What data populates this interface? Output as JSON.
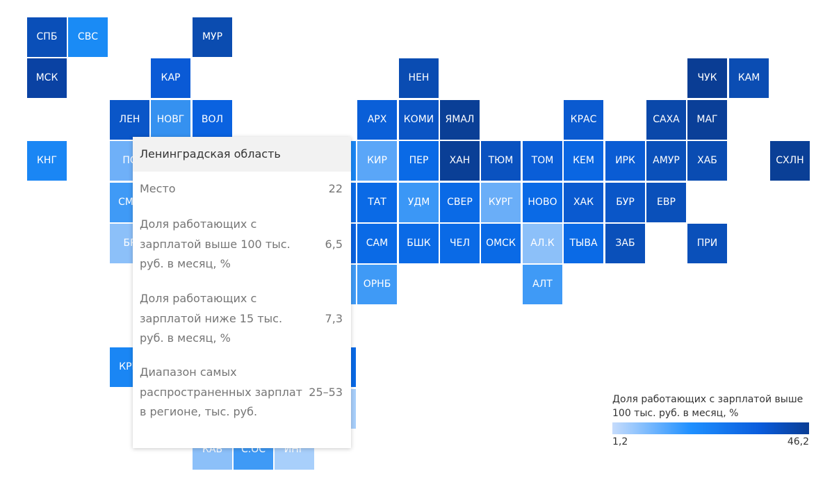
{
  "tiles": [
    {
      "code": "СПБ",
      "col": 0,
      "row": 0,
      "color": "#0a4fb8"
    },
    {
      "code": "СВС",
      "col": 1,
      "row": 0,
      "color": "#1a8bf5"
    },
    {
      "code": "МУР",
      "col": 4,
      "row": 0,
      "color": "#0b4cb0"
    },
    {
      "code": "МСК",
      "col": 0,
      "row": 1,
      "color": "#0a42a3"
    },
    {
      "code": "КАР",
      "col": 3,
      "row": 1,
      "color": "#0a5ad6"
    },
    {
      "code": "НЕН",
      "col": 9,
      "row": 1,
      "color": "#0a4cb2"
    },
    {
      "code": "ЧУК",
      "col": 16,
      "row": 1,
      "color": "#0a3d94"
    },
    {
      "code": "КАМ",
      "col": 17,
      "row": 1,
      "color": "#0b4db3"
    },
    {
      "code": "ЛЕН",
      "col": 2,
      "row": 2,
      "color": "#0a56c8"
    },
    {
      "code": "НОВГ",
      "col": 3,
      "row": 2,
      "color": "#3591f0"
    },
    {
      "code": "ВОЛ",
      "col": 4,
      "row": 2,
      "color": "#0a62e0"
    },
    {
      "code": "АРХ",
      "col": 8,
      "row": 2,
      "color": "#0a5fd8"
    },
    {
      "code": "КОМИ",
      "col": 9,
      "row": 2,
      "color": "#0a54c4"
    },
    {
      "code": "ЯМАЛ",
      "col": 10,
      "row": 2,
      "color": "#0a3f96"
    },
    {
      "code": "КРАС",
      "col": 13,
      "row": 2,
      "color": "#0a5ad0"
    },
    {
      "code": "САХА",
      "col": 15,
      "row": 2,
      "color": "#0a48aa"
    },
    {
      "code": "МАГ",
      "col": 16,
      "row": 2,
      "color": "#0a3f98"
    },
    {
      "code": "КНГ",
      "col": 0,
      "row": 3,
      "color": "#1a86f4"
    },
    {
      "code": "ПС",
      "col": 2,
      "row": 3,
      "color": "#6fb0f8"
    },
    {
      "code": "КИР",
      "col": 8,
      "row": 3,
      "color": "#5aa6f8"
    },
    {
      "code": "ПЕР",
      "col": 9,
      "row": 3,
      "color": "#0a6ae6"
    },
    {
      "code": "ХАН",
      "col": 10,
      "row": 3,
      "color": "#0a3f96"
    },
    {
      "code": "ТЮМ",
      "col": 11,
      "row": 3,
      "color": "#0a52c0"
    },
    {
      "code": "ТОМ",
      "col": 12,
      "row": 3,
      "color": "#0a5ed8"
    },
    {
      "code": "КЕМ",
      "col": 13,
      "row": 3,
      "color": "#0a66e2"
    },
    {
      "code": "ИРК",
      "col": 14,
      "row": 3,
      "color": "#0a5cd4"
    },
    {
      "code": "АМУР",
      "col": 15,
      "row": 3,
      "color": "#0a50ba"
    },
    {
      "code": "ХАБ",
      "col": 16,
      "row": 3,
      "color": "#0a4cb2"
    },
    {
      "code": "СХЛН",
      "col": 18,
      "row": 3,
      "color": "#0a3f96"
    },
    {
      "code": "СМО",
      "col": 2,
      "row": 4,
      "color": "#3f9af6"
    },
    {
      "code": "ТАТ",
      "col": 8,
      "row": 4,
      "color": "#0a6ae6"
    },
    {
      "code": "УДМ",
      "col": 9,
      "row": 4,
      "color": "#3b97f6"
    },
    {
      "code": "СВЕР",
      "col": 10,
      "row": 4,
      "color": "#0a6ae6"
    },
    {
      "code": "КУРГ",
      "col": 11,
      "row": 4,
      "color": "#6aaef8"
    },
    {
      "code": "НОВО",
      "col": 12,
      "row": 4,
      "color": "#0a6ae6"
    },
    {
      "code": "ХАК",
      "col": 13,
      "row": 4,
      "color": "#0a5ad0"
    },
    {
      "code": "БУР",
      "col": 14,
      "row": 4,
      "color": "#0a56c8"
    },
    {
      "code": "ЕВР",
      "col": 15,
      "row": 4,
      "color": "#0a50ba"
    },
    {
      "code": "БР",
      "col": 2,
      "row": 5,
      "color": "#8cc0f9"
    },
    {
      "code": "САМ",
      "col": 8,
      "row": 5,
      "color": "#0a6ae6"
    },
    {
      "code": "БШК",
      "col": 9,
      "row": 5,
      "color": "#0a6ae6"
    },
    {
      "code": "ЧЕЛ",
      "col": 10,
      "row": 5,
      "color": "#0a6ae6"
    },
    {
      "code": "ОМСК",
      "col": 11,
      "row": 5,
      "color": "#0a6ae6"
    },
    {
      "code": "АЛ.К",
      "col": 12,
      "row": 5,
      "color": "#8cc0f9"
    },
    {
      "code": "ТЫВА",
      "col": 13,
      "row": 5,
      "color": "#0a6ae6"
    },
    {
      "code": "ЗАБ",
      "col": 14,
      "row": 5,
      "color": "#0a50ba"
    },
    {
      "code": "ПРИ",
      "col": 16,
      "row": 5,
      "color": "#0a50ba"
    },
    {
      "code": "ОРНБ",
      "col": 8,
      "row": 6,
      "color": "#3f9af6"
    },
    {
      "code": "АЛТ",
      "col": 12,
      "row": 6,
      "color": "#3f9af6"
    },
    {
      "code": "КРЫ",
      "col": 2,
      "row": 8,
      "color": "#1a86f4"
    },
    {
      "code": "КАБ",
      "col": 4,
      "row": 10,
      "color": "#8cc0f9"
    },
    {
      "code": "С.ОС",
      "col": 5,
      "row": 10,
      "color": "#3f9af6"
    },
    {
      "code": "ИНГ",
      "col": 6,
      "row": 10,
      "color": "#a8cffb"
    },
    {
      "code": "",
      "col": 5,
      "row": 6,
      "color": "#2f8ff5"
    },
    {
      "code": "",
      "col": 6,
      "row": 6,
      "color": "#1a86f4"
    },
    {
      "code": "",
      "col": 7,
      "row": 6,
      "color": "#3f9af6"
    },
    {
      "code": "",
      "col": 7,
      "row": 3,
      "color": "#1a86f4"
    },
    {
      "code": "",
      "col": 7,
      "row": 4,
      "color": "#0a6ae6"
    },
    {
      "code": "",
      "col": 7,
      "row": 5,
      "color": "#0a62e0"
    },
    {
      "code": "",
      "col": 7,
      "row": 8,
      "color": "#0a6ae6"
    },
    {
      "code": "",
      "col": 7,
      "row": 9,
      "color": "#a8cffb"
    }
  ],
  "tooltip": {
    "title": "Ленинградская область",
    "rows": [
      {
        "label": "Место",
        "value": "22"
      },
      {
        "label": "Доля работающих с зарплатой выше 100 тыс. руб. в месяц, %",
        "value": "6,5"
      },
      {
        "label": "Доля работающих с зарплатой ниже 15 тыс. руб. в месяц, %",
        "value": "7,3"
      },
      {
        "label": "Диапазон самых распространенных зарплат в регионе, тыс. руб.",
        "value": "25–53"
      }
    ]
  },
  "legend": {
    "title": "Доля работающих с зарплатой выше 100 тыс. руб. в месяц, %",
    "min": "1,2",
    "max": "46,2"
  }
}
